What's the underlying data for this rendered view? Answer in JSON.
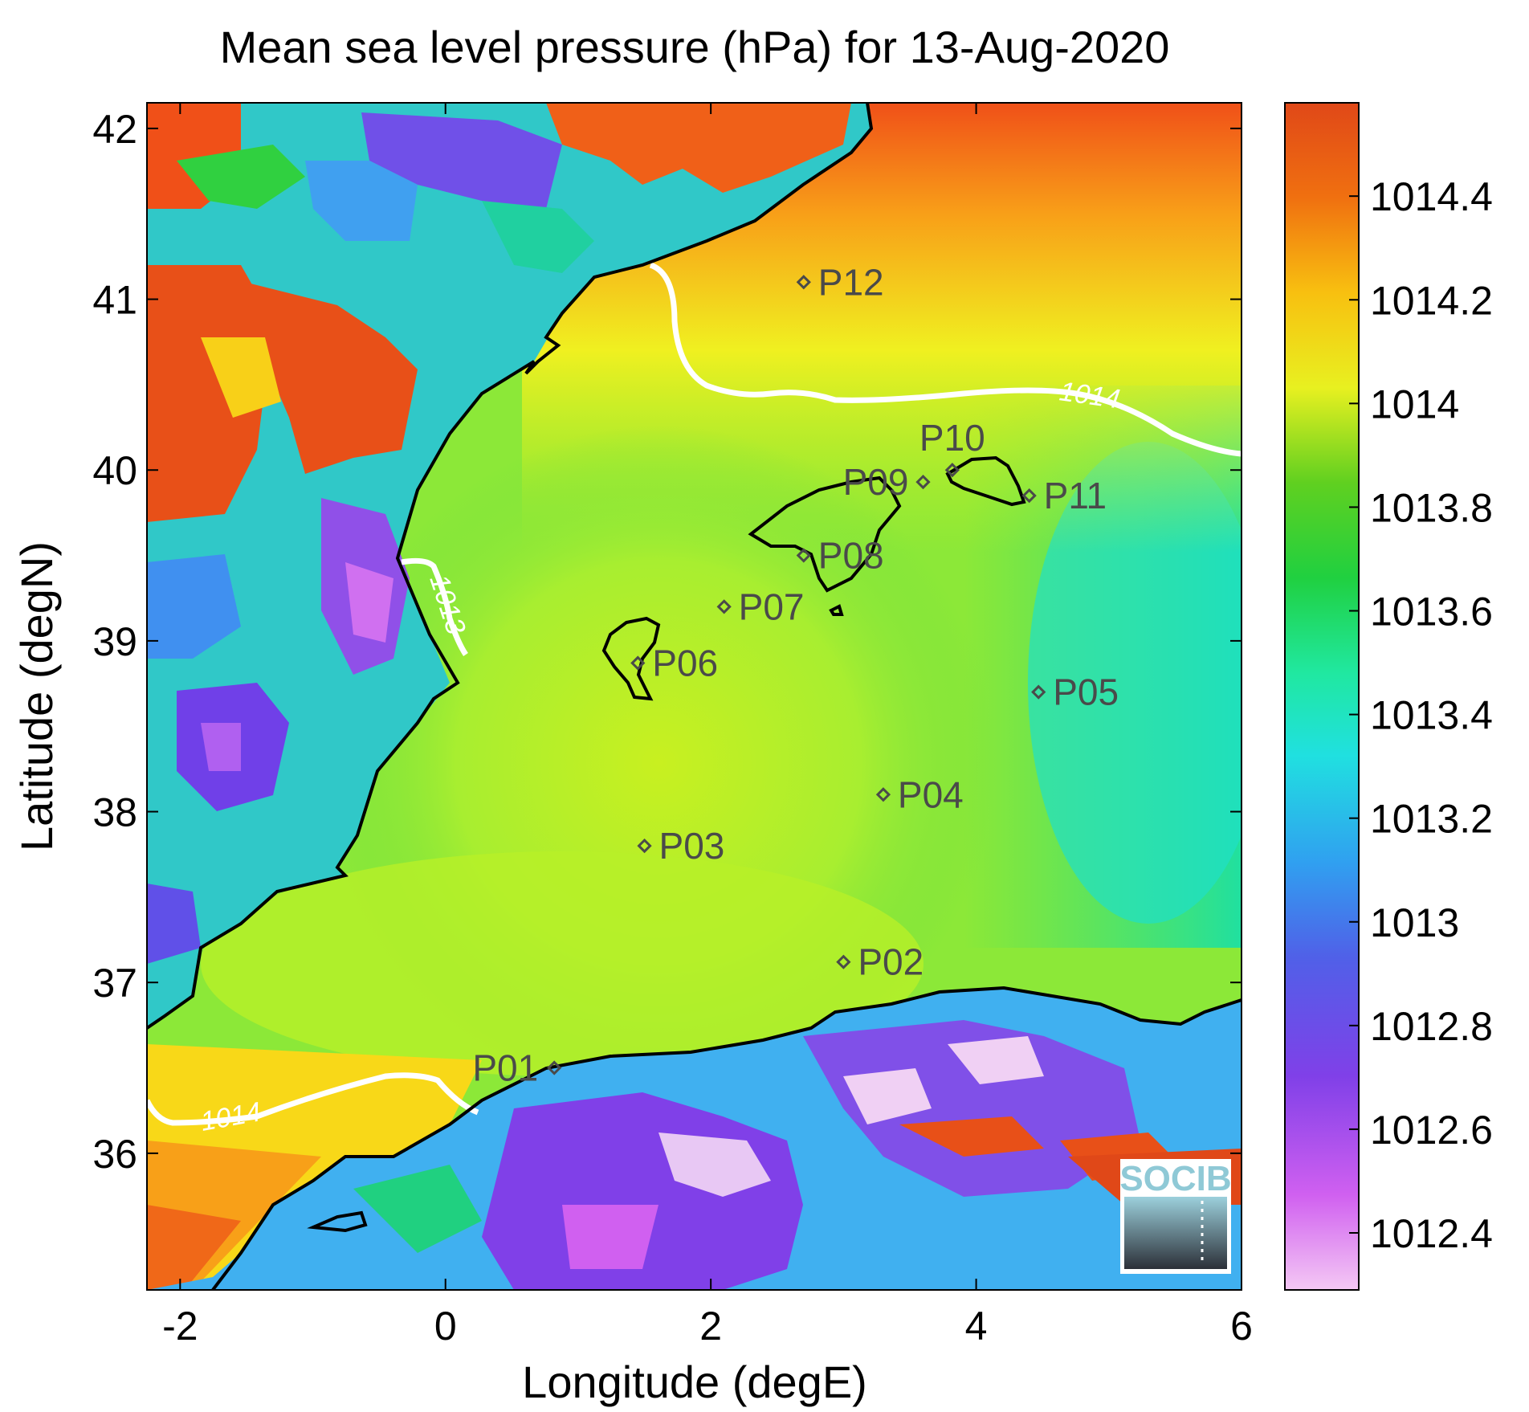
{
  "title": "Mean sea level pressure (hPa) for 13-Aug-2020",
  "xlabel": "Longitude (degE)",
  "ylabel": "Latitude (degN)",
  "xticks": [
    "-2",
    "0",
    "2",
    "4",
    "6"
  ],
  "yticks": [
    "36",
    "37",
    "38",
    "39",
    "40",
    "41",
    "42"
  ],
  "colorbar_ticks": [
    "1012.4",
    "1012.6",
    "1012.8",
    "1013",
    "1013.2",
    "1013.4",
    "1013.6",
    "1013.8",
    "1014",
    "1014.2",
    "1014.4"
  ],
  "colors": {
    "coast": "#000000",
    "contour": "#ffffff",
    "station": "#4a4a4a"
  },
  "contours": [
    "1013",
    "1014",
    "1014"
  ],
  "logo": "SOCIB",
  "stations": [
    {
      "id": "P01",
      "lon": 0.82,
      "lat": 36.5
    },
    {
      "id": "P02",
      "lon": 3.0,
      "lat": 37.12
    },
    {
      "id": "P03",
      "lon": 1.5,
      "lat": 37.8
    },
    {
      "id": "P04",
      "lon": 3.3,
      "lat": 38.1
    },
    {
      "id": "P05",
      "lon": 4.47,
      "lat": 38.7
    },
    {
      "id": "P06",
      "lon": 1.45,
      "lat": 38.87
    },
    {
      "id": "P07",
      "lon": 2.1,
      "lat": 39.2
    },
    {
      "id": "P08",
      "lon": 2.7,
      "lat": 39.5
    },
    {
      "id": "P09",
      "lon": 3.6,
      "lat": 39.93
    },
    {
      "id": "P10",
      "lon": 3.82,
      "lat": 40.0
    },
    {
      "id": "P11",
      "lon": 4.4,
      "lat": 39.85
    },
    {
      "id": "P12",
      "lon": 2.7,
      "lat": 41.1
    }
  ]
}
